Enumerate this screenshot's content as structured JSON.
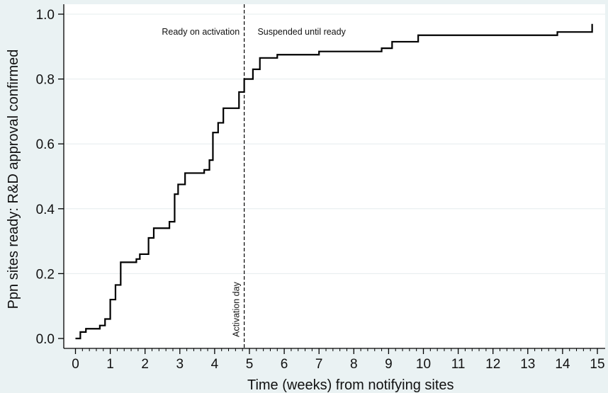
{
  "chart_data": {
    "type": "line",
    "subtype": "step",
    "title": "",
    "xlabel": "Time (weeks) from notifying sites",
    "ylabel": "Ppn sites ready: R&D approval confirmed",
    "xlim": [
      -0.3,
      15.1
    ],
    "ylim": [
      -0.02,
      1.03
    ],
    "x_ticks": [
      0,
      1,
      2,
      3,
      4,
      5,
      6,
      7,
      8,
      9,
      10,
      11,
      12,
      13,
      14,
      15
    ],
    "x_tick_labels": [
      "0",
      "1",
      "2",
      "3",
      "4",
      "5",
      "6",
      "7",
      "8",
      "9",
      "10",
      "11",
      "12",
      "13",
      "14",
      "15"
    ],
    "y_ticks": [
      0.0,
      0.2,
      0.4,
      0.6,
      0.8,
      1.0
    ],
    "y_tick_labels": [
      "0.0",
      "0.2",
      "0.4",
      "0.6",
      "0.8",
      "1.0"
    ],
    "minor_x_ticks_per_unit": 5,
    "grid": "horizontal",
    "series": [
      {
        "x": [
          0.0,
          0.14,
          0.3,
          0.7,
          0.85,
          1.0,
          1.15,
          1.3,
          1.75,
          1.85,
          2.1,
          2.25,
          2.7,
          2.85,
          2.95,
          3.15,
          3.7,
          3.85,
          3.95,
          4.1,
          4.25,
          4.7,
          4.85,
          5.1,
          5.3,
          5.8,
          7.0,
          8.8,
          9.1,
          9.85,
          13.85,
          14.85
        ],
        "y": [
          0.0,
          0.02,
          0.03,
          0.04,
          0.06,
          0.12,
          0.165,
          0.235,
          0.245,
          0.26,
          0.31,
          0.34,
          0.36,
          0.445,
          0.475,
          0.51,
          0.52,
          0.55,
          0.635,
          0.665,
          0.71,
          0.76,
          0.8,
          0.83,
          0.865,
          0.875,
          0.885,
          0.895,
          0.915,
          0.935,
          0.945,
          0.97
        ]
      }
    ],
    "reference_line": {
      "x": 4.85,
      "label": "Activation day"
    },
    "annotations": [
      {
        "text": "Ready on activation",
        "x": 3.6,
        "y": 0.945
      },
      {
        "text": "Suspended until ready",
        "x": 6.5,
        "y": 0.945
      }
    ]
  }
}
